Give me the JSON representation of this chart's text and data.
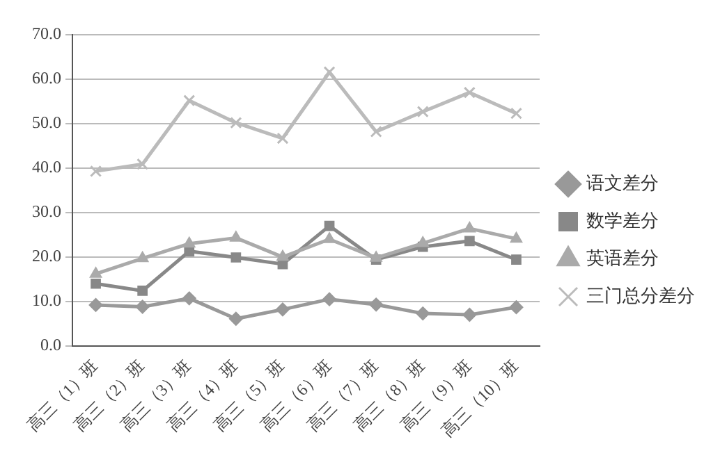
{
  "chart_data": {
    "type": "line",
    "categories": [
      "高三（1）班",
      "高三（2）班",
      "高三（3）班",
      "高三（4）班",
      "高三（5）班",
      "高三（6）班",
      "高三（7）班",
      "高三（8）班",
      "高三（9）班",
      "高三（10）班"
    ],
    "series": [
      {
        "name": "语文差分",
        "color": "#999999",
        "marker": "diamond",
        "values": [
          9.2,
          8.8,
          10.7,
          6.1,
          8.2,
          10.5,
          9.3,
          7.3,
          7.0,
          8.7
        ]
      },
      {
        "name": "数学差分",
        "color": "#888888",
        "marker": "square",
        "values": [
          14.0,
          12.4,
          21.3,
          19.9,
          18.4,
          27.0,
          19.4,
          22.3,
          23.6,
          19.4
        ]
      },
      {
        "name": "英语差分",
        "color": "#aaaaaa",
        "marker": "triangle",
        "values": [
          16.2,
          19.7,
          23.0,
          24.3,
          20.0,
          24.0,
          19.8,
          23.1,
          26.4,
          24.1
        ]
      },
      {
        "name": "三门总分差分",
        "color": "#bbbbbb",
        "marker": "cross",
        "values": [
          39.3,
          40.9,
          55.2,
          50.2,
          46.7,
          61.6,
          48.2,
          52.7,
          57.0,
          52.3
        ]
      }
    ],
    "ylim": [
      0,
      70
    ],
    "yticks": [
      {
        "value": 0,
        "label": "0.0"
      },
      {
        "value": 10,
        "label": "10.0"
      },
      {
        "value": 20,
        "label": "20.0"
      },
      {
        "value": 30,
        "label": "30.0"
      },
      {
        "value": 40,
        "label": "40.0"
      },
      {
        "value": 50,
        "label": "50.0"
      },
      {
        "value": 60,
        "label": "60.0"
      },
      {
        "value": 70,
        "label": "70.0"
      }
    ],
    "grid": "y",
    "legend": "right",
    "line_style": "solid"
  }
}
